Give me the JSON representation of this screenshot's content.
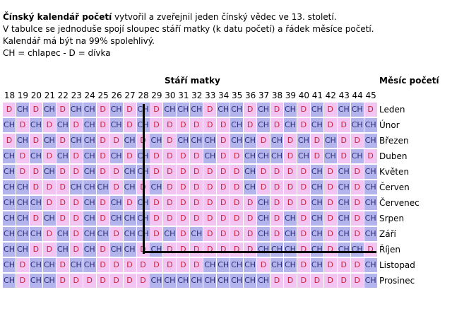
{
  "intro": {
    "title": "Čínský kalendář početí",
    "title_rest": " vytvořil a zveřejnil jeden čínský vědec ve 13. století.",
    "line2": "V tabulce se jednoduše spojí sloupec stáří matky (k datu početí) a řádek měsíce početí.",
    "line3": "Kalendář má být na 99% spolehlivý.",
    "line4": "CH = chlapec - D = dívka"
  },
  "headers": {
    "age": "Stáří matky",
    "month": "Měsíc početí"
  },
  "ages": [
    "18",
    "19",
    "20",
    "21",
    "22",
    "23",
    "24",
    "25",
    "26",
    "27",
    "28",
    "29",
    "30",
    "31",
    "32",
    "33",
    "34",
    "35",
    "36",
    "37",
    "38",
    "39",
    "40",
    "41",
    "42",
    "43",
    "44",
    "45"
  ],
  "months": [
    "Leden",
    "Únor",
    "Březen",
    "Duben",
    "Květen",
    "Červen",
    "Červenec",
    "Srpen",
    "Září",
    "Říjen",
    "Listopad",
    "Prosinec"
  ],
  "rows": [
    [
      "D",
      "CH",
      "D",
      "CH",
      "D",
      "CH",
      "CH",
      "D",
      "CH",
      "D",
      "CH",
      "D",
      "CH",
      "CH",
      "CH",
      "D",
      "CH",
      "CH",
      "D",
      "CH",
      "D",
      "CH",
      "D",
      "CH",
      "D",
      "CH",
      "CH",
      "D"
    ],
    [
      "CH",
      "D",
      "CH",
      "D",
      "CH",
      "D",
      "CH",
      "D",
      "CH",
      "D",
      "CH",
      "D",
      "D",
      "D",
      "D",
      "D",
      "D",
      "CH",
      "D",
      "CH",
      "D",
      "CH",
      "D",
      "CH",
      "D",
      "D",
      "CH",
      "CH"
    ],
    [
      "D",
      "CH",
      "D",
      "CH",
      "D",
      "CH",
      "CH",
      "D",
      "D",
      "CH",
      "D",
      "CH",
      "D",
      "CH",
      "CH",
      "CH",
      "D",
      "CH",
      "CH",
      "D",
      "CH",
      "D",
      "CH",
      "D",
      "CH",
      "D",
      "D",
      "CH"
    ],
    [
      "CH",
      "D",
      "CH",
      "D",
      "CH",
      "D",
      "CH",
      "D",
      "CH",
      "D",
      "CH",
      "D",
      "D",
      "D",
      "D",
      "CH",
      "D",
      "D",
      "CH",
      "CH",
      "CH",
      "D",
      "CH",
      "D",
      "CH",
      "D",
      "CH",
      "D"
    ],
    [
      "CH",
      "D",
      "D",
      "CH",
      "D",
      "D",
      "CH",
      "D",
      "D",
      "CH",
      "CH",
      "D",
      "D",
      "D",
      "D",
      "D",
      "D",
      "D",
      "CH",
      "D",
      "D",
      "D",
      "D",
      "CH",
      "D",
      "CH",
      "D",
      "CH"
    ],
    [
      "CH",
      "CH",
      "D",
      "D",
      "D",
      "CH",
      "CH",
      "CH",
      "D",
      "CH",
      "D",
      "CH",
      "D",
      "D",
      "D",
      "D",
      "D",
      "D",
      "CH",
      "D",
      "D",
      "D",
      "D",
      "CH",
      "D",
      "CH",
      "D",
      "CH"
    ],
    [
      "CH",
      "CH",
      "CH",
      "D",
      "D",
      "D",
      "CH",
      "D",
      "CH",
      "D",
      "CH",
      "D",
      "D",
      "D",
      "D",
      "D",
      "D",
      "D",
      "D",
      "CH",
      "D",
      "D",
      "D",
      "CH",
      "D",
      "CH",
      "D",
      "CH"
    ],
    [
      "CH",
      "CH",
      "D",
      "CH",
      "D",
      "D",
      "CH",
      "D",
      "CH",
      "CH",
      "CH",
      "D",
      "D",
      "D",
      "D",
      "D",
      "D",
      "D",
      "D",
      "CH",
      "D",
      "CH",
      "D",
      "CH",
      "D",
      "CH",
      "D",
      "CH"
    ],
    [
      "CH",
      "CH",
      "CH",
      "D",
      "CH",
      "D",
      "CH",
      "CH",
      "D",
      "CH",
      "CH",
      "D",
      "CH",
      "D",
      "CH",
      "D",
      "D",
      "D",
      "D",
      "CH",
      "D",
      "CH",
      "D",
      "CH",
      "D",
      "CH",
      "D",
      "CH"
    ],
    [
      "CH",
      "CH",
      "D",
      "D",
      "CH",
      "D",
      "CH",
      "D",
      "CH",
      "CH",
      "D",
      "CH",
      "D",
      "D",
      "D",
      "D",
      "D",
      "D",
      "D",
      "CH",
      "CH",
      "CH",
      "D",
      "CH",
      "D",
      "CH",
      "CH",
      "D"
    ],
    [
      "CH",
      "D",
      "CH",
      "CH",
      "D",
      "CH",
      "CH",
      "D",
      "D",
      "D",
      "D",
      "D",
      "D",
      "D",
      "D",
      "CH",
      "CH",
      "CH",
      "CH",
      "D",
      "CH",
      "CH",
      "D",
      "CH",
      "D",
      "D",
      "D",
      "CH"
    ],
    [
      "CH",
      "D",
      "CH",
      "CH",
      "D",
      "D",
      "D",
      "D",
      "D",
      "D",
      "D",
      "CH",
      "CH",
      "CH",
      "CH",
      "CH",
      "CH",
      "CH",
      "CH",
      "CH",
      "D",
      "D",
      "D",
      "D",
      "D",
      "D",
      "D",
      "CH"
    ]
  ],
  "colors": {
    "ch_bg": "#b4b4ec",
    "d_bg": "#f2c4f2",
    "ch_text": "#2d2d7a",
    "d_text": "#cc1f3a"
  }
}
